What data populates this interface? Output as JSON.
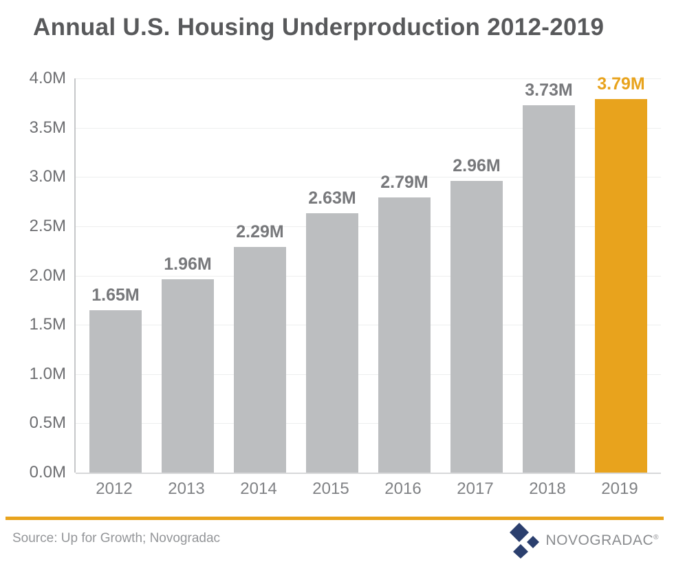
{
  "title": "Annual U.S. Housing Underproduction 2012-2019",
  "chart_data": {
    "type": "bar",
    "categories": [
      "2012",
      "2013",
      "2014",
      "2015",
      "2016",
      "2017",
      "2018",
      "2019"
    ],
    "values": [
      1.65,
      1.96,
      2.29,
      2.63,
      2.79,
      2.96,
      3.73,
      3.79
    ],
    "bar_labels": [
      "1.65M",
      "1.96M",
      "2.29M",
      "2.63M",
      "2.79M",
      "2.96M",
      "3.73M",
      "3.79M"
    ],
    "title": "Annual U.S. Housing Underproduction 2012-2019",
    "xlabel": "",
    "ylabel": "",
    "ylim": [
      0,
      4.0
    ],
    "yticks": [
      "4.0M",
      "3.5M",
      "3.0M",
      "2.5M",
      "2.0M",
      "1.5M",
      "1.0M",
      "0.5M",
      "0.0M"
    ],
    "grid": true,
    "legend": false,
    "bar_color": "#BCBEC0",
    "label_color": "#77787B",
    "highlight_index": 7,
    "highlight_color": "#E8A31D"
  },
  "footer": {
    "source": "Source: Up for Growth; Novogradac",
    "brand_name": "NOVOGRADAC",
    "registered_mark": "®"
  },
  "colors": {
    "title_text": "#58595B",
    "axis_text": "#6D6E71",
    "bar_gray": "#BCBEC0",
    "accent_gold": "#E8A31D",
    "brand_navy": "#2B3F6E",
    "gridline": "#EDEEEE",
    "source_text": "#939598"
  }
}
